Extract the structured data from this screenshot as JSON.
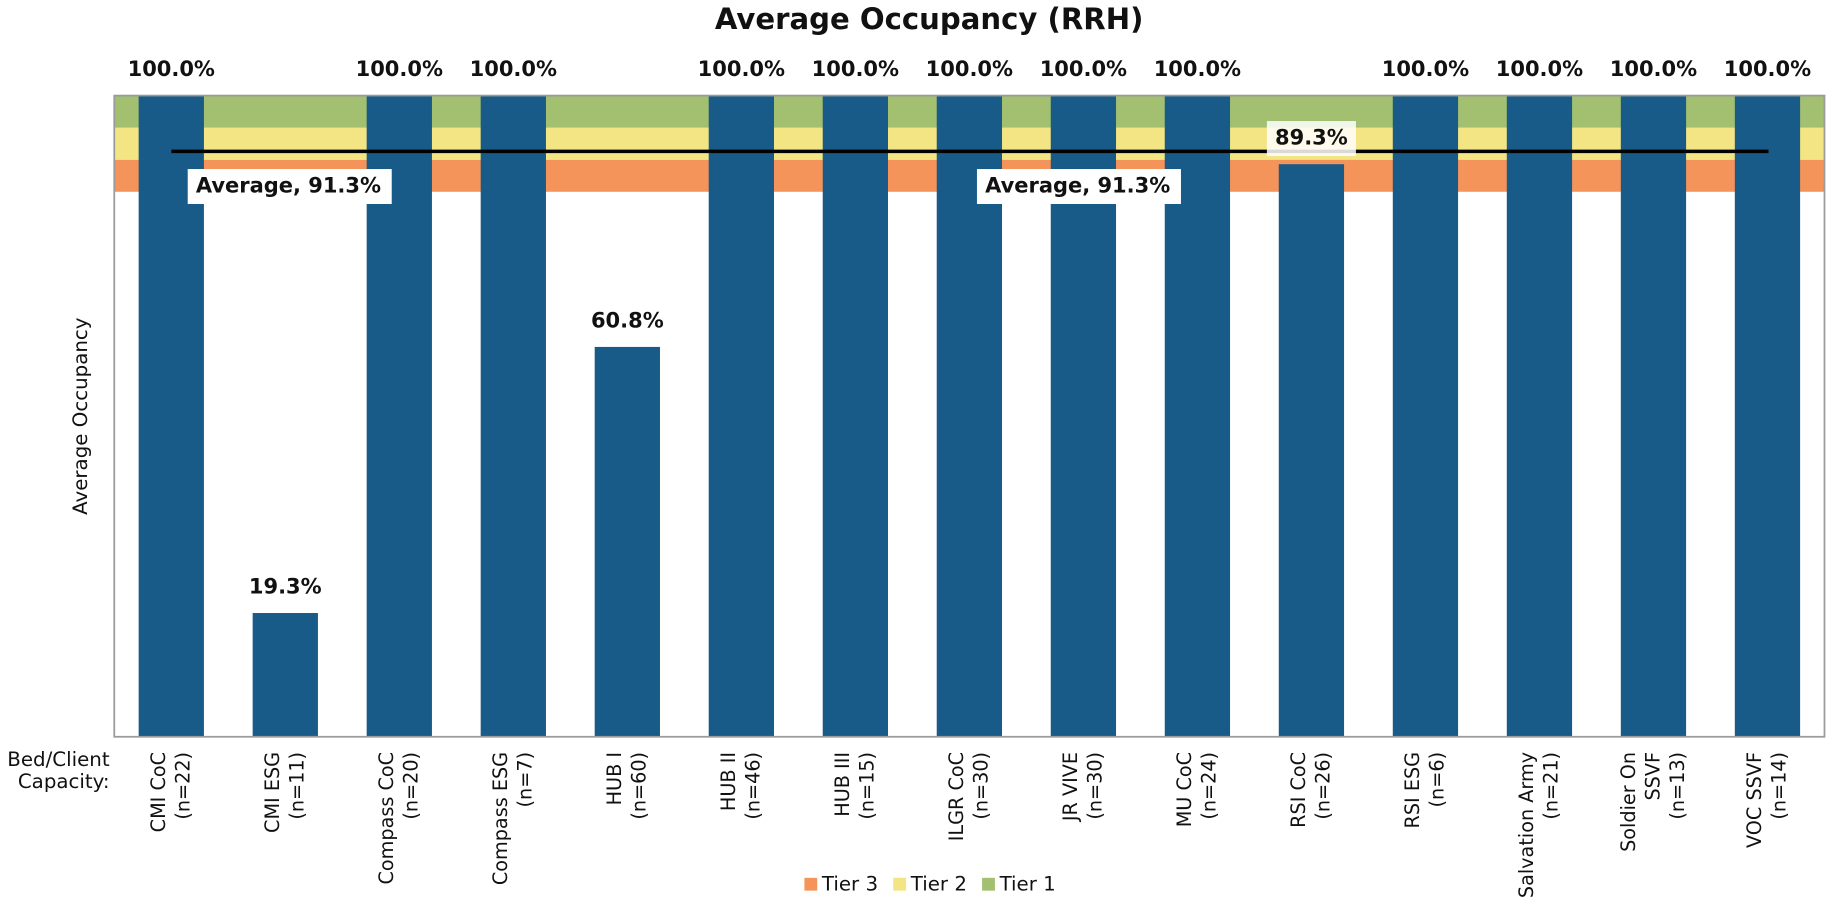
{
  "chart_data": {
    "type": "bar",
    "title": "Average Occupancy (RRH)",
    "y_label": "Average Occupancy",
    "x_label": "Bed/Client\nCapacity:",
    "categories": [
      "CMI CoC\n(n=22)",
      "CMI ESG\n(n=11)",
      "Compass CoC\n(n=20)",
      "Compass ESG\n(n=7)",
      "HUB I\n(n=60)",
      "HUB II\n(n=46)",
      "HUB III\n(n=15)",
      "ILGR CoC\n(n=30)",
      "JR VIVE\n(n=30)",
      "MU CoC\n(n=24)",
      "RSI CoC\n(n=26)",
      "RSI ESG\n(n=6)",
      "Salvation Army\n(n=21)",
      "Soldier On\nSSVF\n(n=13)",
      "VOC SSVF\n(n=14)"
    ],
    "values": [
      100,
      19.3,
      100,
      100,
      60.8,
      100,
      100,
      100,
      100,
      100,
      89.3,
      100,
      100,
      100,
      100
    ],
    "value_labels": [
      "100.0%",
      "19.3%",
      "100.0%",
      "100.0%",
      "60.8%",
      "100.0%",
      "100.0%",
      "100.0%",
      "100.0%",
      "100.0%",
      "89.3%",
      "100.0%",
      "100.0%",
      "100.0%",
      "100.0%"
    ],
    "color": "#185a88",
    "ylim": [
      0,
      100
    ],
    "bands": [
      {
        "name": "Tier 3",
        "color": "#f4945a",
        "range": [
          85,
          90
        ]
      },
      {
        "name": "Tier 2",
        "color": "#f3e583",
        "range": [
          90,
          95
        ]
      },
      {
        "name": "Tier 1",
        "color": "#a2c070",
        "range": [
          95,
          100
        ]
      }
    ],
    "average": {
      "value": 91.3,
      "label": "Average, 91.3%"
    }
  }
}
